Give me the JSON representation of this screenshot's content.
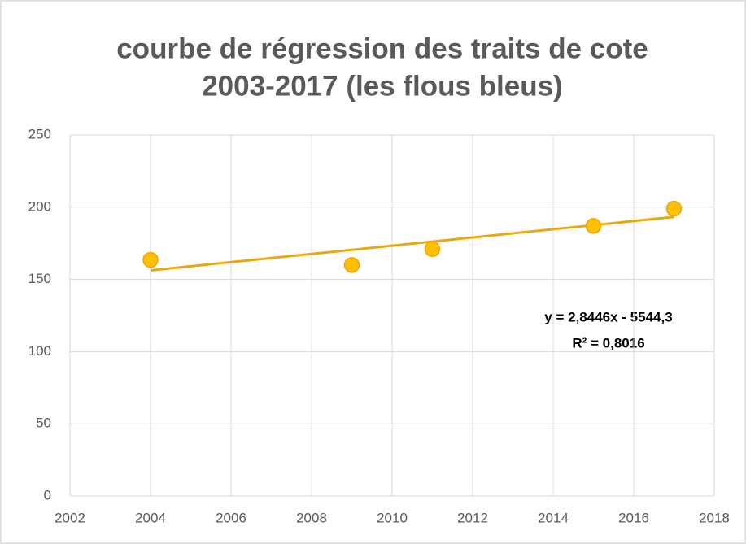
{
  "chart_data": {
    "type": "scatter",
    "title": [
      "courbe de régression des traits de cote",
      "2003-2017 (les flous bleus)"
    ],
    "x": [
      2004,
      2009,
      2011,
      2015,
      2017
    ],
    "values": [
      163.5,
      160,
      171,
      187,
      199
    ],
    "color": "#ffc000",
    "xlim": [
      2002,
      2018
    ],
    "xticks": [
      2002,
      2004,
      2006,
      2008,
      2010,
      2012,
      2014,
      2016,
      2018
    ],
    "ylim": [
      0,
      250
    ],
    "yticks": [
      0,
      50,
      100,
      150,
      200,
      250
    ],
    "grid": true,
    "trendline": {
      "slope": 2.8446,
      "intercept": -5544.3,
      "color": "#e8a90c"
    },
    "annotations": [
      "y = 2,8446x - 5544,3",
      "R² = 0,8016"
    ]
  }
}
